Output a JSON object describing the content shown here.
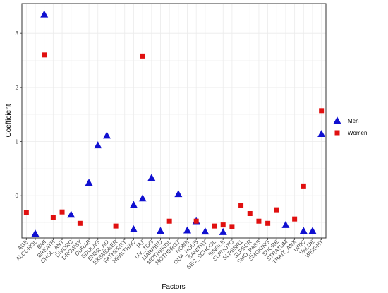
{
  "chart_data": {
    "type": "scatter",
    "xlabel": "Factors",
    "ylabel": "Coefficient",
    "ylim": [
      -0.78,
      3.55
    ],
    "yticks": [
      0,
      1,
      2,
      3
    ],
    "grid": true,
    "legend_position": "right",
    "categories": [
      "AGE",
      "ALCOHOL",
      "BMI",
      "BREATH",
      "CHOL_ANT",
      "DIVORC",
      "DROWSY",
      "DURAB",
      "EDULAG",
      "ENER_AD",
      "EXSMOKER",
      "FATHERGT",
      "HEALTHAC",
      "IAT",
      "LIV_TOG",
      "MARRIED",
      "MOTHERDL",
      "MOTHERGT",
      "NONE",
      "QUA_HOUS",
      "SANITRY",
      "SEC_SCHOOL",
      "SINGLE",
      "SLPNOTQ",
      "SLPSNR1",
      "SLPSOR",
      "SMO_PASS",
      "SMOKING",
      "SNORE",
      "STRATUM",
      "TRAIT_ANX",
      "URIC",
      "VALUE",
      "WEIGHT"
    ],
    "series": [
      {
        "name": "Men",
        "color": "#1010d0",
        "marker": "triangle",
        "points": [
          {
            "x": "ALCOHOL",
            "y": -0.7
          },
          {
            "x": "BMI",
            "y": 3.35
          },
          {
            "x": "DIVORC",
            "y": -0.35
          },
          {
            "x": "DURAB",
            "y": 0.24
          },
          {
            "x": "EDULAG",
            "y": 0.93
          },
          {
            "x": "ENER_AD",
            "y": 1.11
          },
          {
            "x": "HEALTHAC",
            "y": -0.62
          },
          {
            "x": "HEALTHAC",
            "y": -0.17
          },
          {
            "x": "IAT",
            "y": -0.05
          },
          {
            "x": "LIV_TOG",
            "y": 0.33
          },
          {
            "x": "MARRIED",
            "y": -0.65
          },
          {
            "x": "MOTHERGT",
            "y": 0.03
          },
          {
            "x": "NONE",
            "y": -0.64
          },
          {
            "x": "QUA_HOUS",
            "y": -0.47
          },
          {
            "x": "SANITRY",
            "y": -0.66
          },
          {
            "x": "SINGLE",
            "y": -0.67
          },
          {
            "x": "STRATUM",
            "y": -0.54
          },
          {
            "x": "URIC",
            "y": -0.65
          },
          {
            "x": "VALUE",
            "y": -0.65
          },
          {
            "x": "WEIGHT",
            "y": 1.14
          }
        ]
      },
      {
        "name": "Women",
        "color": "#e01010",
        "marker": "square",
        "points": [
          {
            "x": "AGE",
            "y": -0.31
          },
          {
            "x": "BMI",
            "y": 2.6
          },
          {
            "x": "BREATH",
            "y": -0.4
          },
          {
            "x": "CHOL_ANT",
            "y": -0.3
          },
          {
            "x": "DROWSY",
            "y": -0.51
          },
          {
            "x": "EXSMOKER",
            "y": -0.56
          },
          {
            "x": "IAT",
            "y": 2.58
          },
          {
            "x": "MOTHERDL",
            "y": -0.47
          },
          {
            "x": "QUA_HOUS",
            "y": -0.47
          },
          {
            "x": "SEC_SCHOOL",
            "y": -0.56
          },
          {
            "x": "SINGLE",
            "y": -0.54
          },
          {
            "x": "SLPNOTQ",
            "y": -0.57
          },
          {
            "x": "SLPSNR1",
            "y": -0.18
          },
          {
            "x": "SLPSOR",
            "y": -0.33
          },
          {
            "x": "SMO_PASS",
            "y": -0.47
          },
          {
            "x": "SMOKING",
            "y": -0.51
          },
          {
            "x": "SNORE",
            "y": -0.26
          },
          {
            "x": "TRAIT_ANX",
            "y": -0.43
          },
          {
            "x": "URIC",
            "y": 0.18
          },
          {
            "x": "WEIGHT",
            "y": 1.57
          }
        ]
      }
    ]
  }
}
